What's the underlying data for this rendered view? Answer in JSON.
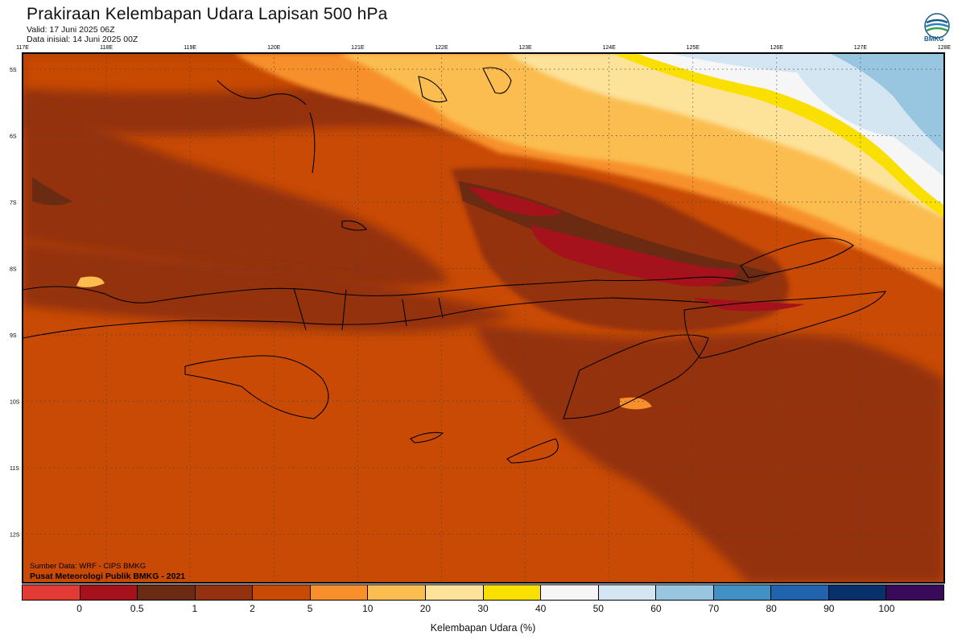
{
  "header": {
    "title": "Prakiraan Kelembapan Udara Lapisan 500 hPa",
    "valid": "Valid: 17 Juni 2025 06Z",
    "init": "Data inisial: 14 Juni 2025 00Z",
    "logo_text": "BMKG"
  },
  "map": {
    "lon_labels": [
      "117E",
      "118E",
      "119E",
      "120E",
      "121E",
      "122E",
      "123E",
      "124E",
      "125E",
      "126E",
      "127E",
      "128E"
    ],
    "lat_labels": [
      "5S",
      "6S",
      "7S",
      "8S",
      "9S",
      "10S",
      "11S",
      "12S"
    ],
    "source": "Sumber Data: WRF - CIPS BMKG",
    "credit": "Pusat Meteorologi Publik BMKG - 2021"
  },
  "legend": {
    "colors": [
      "#e43a36",
      "#a5121b",
      "#6b2a12",
      "#943110",
      "#c84a05",
      "#f7902a",
      "#fbbd50",
      "#fde29a",
      "#f9e001",
      "#f6f6f6",
      "#d3e6f1",
      "#98c6e0",
      "#4291c4",
      "#2164ad",
      "#08306b",
      "#3a0a5a"
    ],
    "labels": [
      "0",
      "0.5",
      "1",
      "2",
      "5",
      "10",
      "20",
      "30",
      "40",
      "50",
      "60",
      "70",
      "80",
      "90",
      "100"
    ],
    "unit": "Kelembapan Udara (%)"
  }
}
